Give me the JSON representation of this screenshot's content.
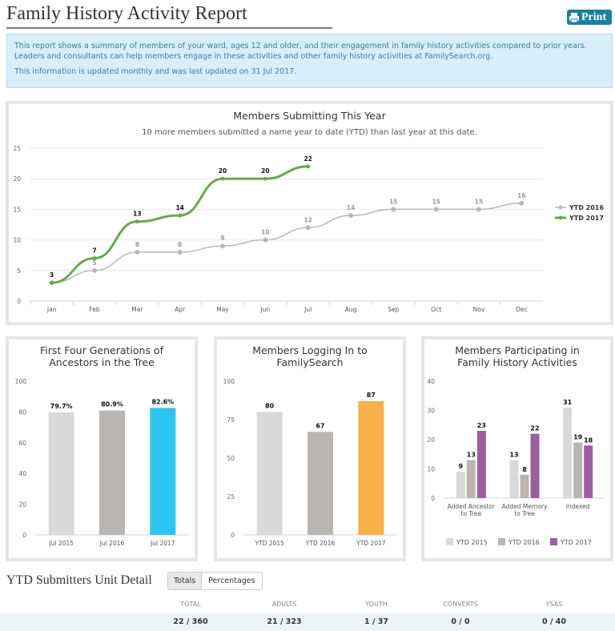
{
  "header": {
    "title": "Family History Activity Report",
    "print": "Print"
  },
  "info": {
    "paragraphs": [
      "This report shows a summary of members of your ward, ages 12 and older, and their engagement in family history activities compared to prior years. Leaders and consultants can help members engage in these activities and other family history activities at FamilySearch.org.",
      "This information is updated monthly and was last updated on 31 Jul 2017."
    ]
  },
  "chart_data": [
    {
      "type": "line",
      "title": "Members Submitting This Year",
      "subtitle": "10 more members submitted a name year to date (YTD) than last year at this date.",
      "categories": [
        "Jan",
        "Feb",
        "Mar",
        "Apr",
        "May",
        "Jun",
        "Jul",
        "Aug",
        "Sep",
        "Oct",
        "Nov",
        "Dec"
      ],
      "series": [
        {
          "name": "YTD 2016",
          "color": "#b8b8b8",
          "values": [
            3,
            5,
            8,
            8,
            9,
            10,
            12,
            14,
            15,
            15,
            15,
            16
          ]
        },
        {
          "name": "YTD 2017",
          "color": "#6aa84f",
          "values": [
            3,
            7,
            13,
            14,
            20,
            20,
            22,
            null,
            null,
            null,
            null,
            null
          ]
        }
      ],
      "ylim": [
        0,
        25
      ],
      "yticks": [
        0,
        5,
        10,
        15,
        20,
        25
      ],
      "grid": true,
      "legend": "right"
    },
    {
      "type": "bar",
      "title": "First Four Generations of Ancestors in the Tree",
      "categories": [
        "Jul 2015",
        "Jul 2016",
        "Jul 2017"
      ],
      "values": [
        79.7,
        80.9,
        82.6
      ],
      "value_labels": [
        "79.7%",
        "80.9%",
        "82.6%"
      ],
      "colors": [
        "#d9d9d9",
        "#bab5b0",
        "#2ec4f2"
      ],
      "ylim": [
        0,
        100
      ],
      "yticks": [
        0,
        20,
        40,
        60,
        80,
        100
      ],
      "grid": false
    },
    {
      "type": "bar",
      "title": "Members Logging In to FamilySearch",
      "categories": [
        "YTD 2015",
        "YTD 2016",
        "YTD 2017"
      ],
      "values": [
        80,
        67,
        87
      ],
      "colors": [
        "#d9d9d9",
        "#bab5b0",
        "#f8b04a"
      ],
      "ylim": [
        0,
        100
      ],
      "yticks": [
        0,
        25,
        50,
        75,
        100
      ],
      "grid": false
    },
    {
      "type": "grouped_bar",
      "title": "Members Participating in Family History Activities",
      "categories": [
        "Added Ancestor to Tree",
        "Added Memory to Tree",
        "Indexed"
      ],
      "series": [
        {
          "name": "YTD 2015",
          "color": "#d9d9d9",
          "values": [
            9,
            13,
            31
          ]
        },
        {
          "name": "YTD 2016",
          "color": "#bab5b0",
          "values": [
            13,
            8,
            19
          ]
        },
        {
          "name": "YTD 2017",
          "color": "#9b5fa0",
          "values": [
            23,
            22,
            18
          ]
        }
      ],
      "ylim": [
        0,
        40
      ],
      "yticks": [
        0,
        10,
        20,
        30,
        40
      ],
      "grid": false,
      "legend": "bottom"
    }
  ],
  "detail": {
    "title": "YTD Submitters Unit Detail",
    "tabs": [
      "Totals",
      "Percentages"
    ],
    "columns": [
      "TOTAL",
      "ADULTS",
      "YOUTH",
      "CONVERTS",
      "YSAS"
    ],
    "row": [
      "22 / 360",
      "21 / 323",
      "1 / 37",
      "0 / 0",
      "0 / 40"
    ]
  }
}
